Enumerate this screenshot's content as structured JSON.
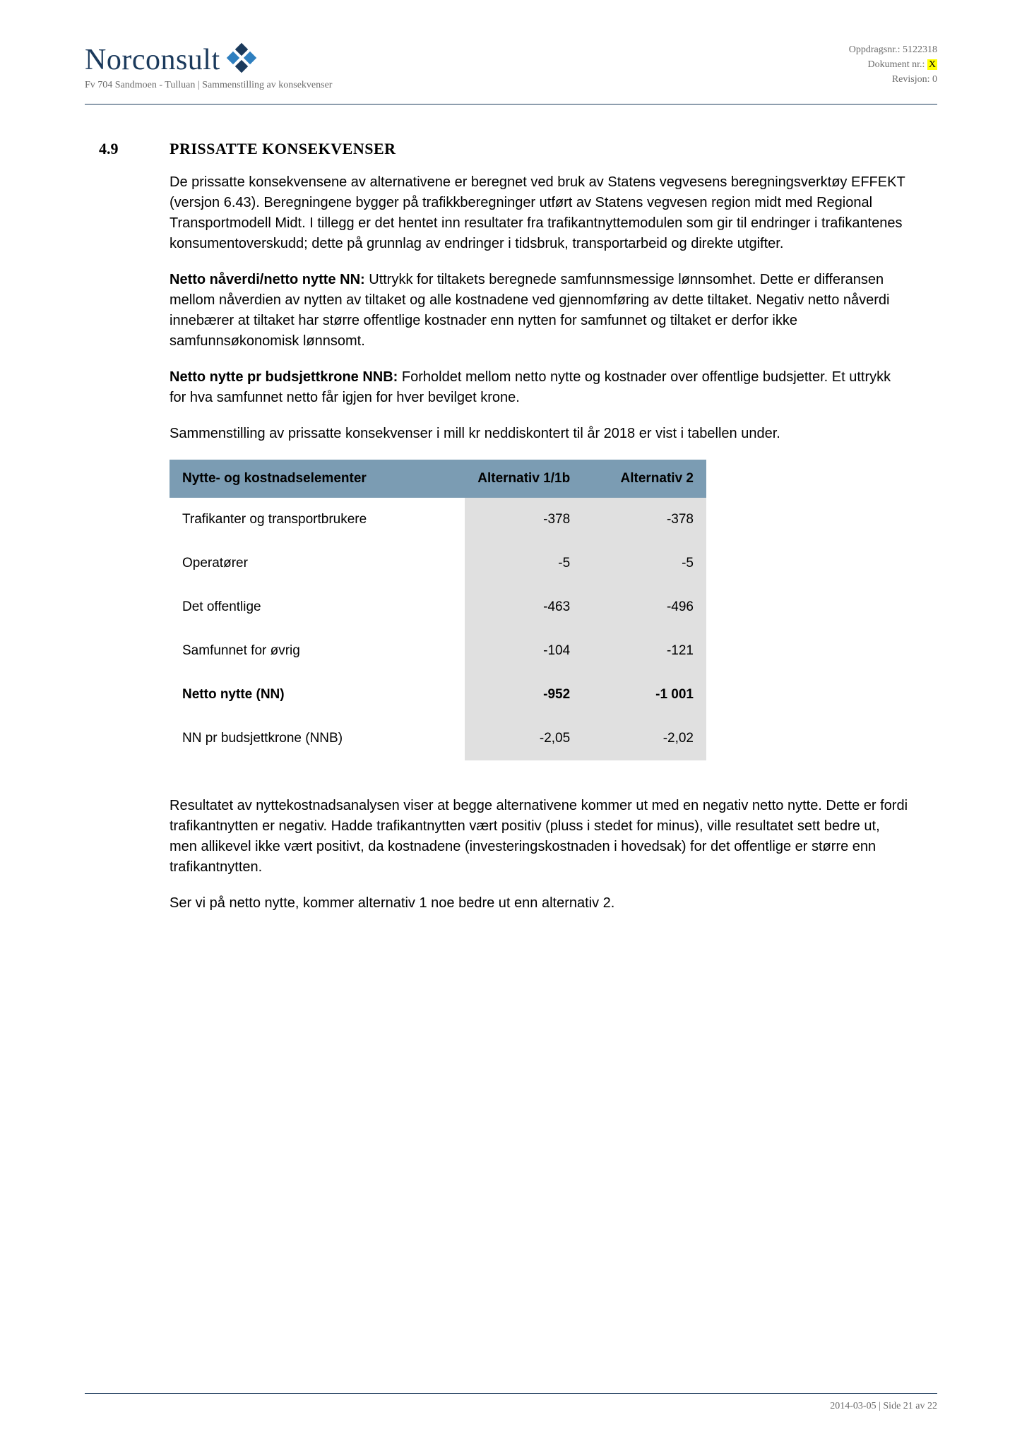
{
  "header": {
    "brand_name": "Norconsult",
    "brand_sub": "Fv 704 Sandmoen - Tulluan | Sammenstilling av konsekvenser",
    "meta_line1": "Oppdragsnr.: 5122318",
    "meta_line2_prefix": "Dokument nr.: ",
    "meta_line2_highlight": "X",
    "meta_line3": "Revisjon: 0",
    "logo_colors": {
      "blue": "#2f7fbf",
      "navy": "#1b3a5c"
    }
  },
  "section": {
    "number": "4.9",
    "title": "PRISSATTE KONSEKVENSER"
  },
  "paragraphs": {
    "p1": "De prissatte konsekvensene av alternativene er beregnet ved bruk av Statens vegvesens beregningsverktøy EFFEKT (versjon 6.43). Beregningene bygger på trafikkberegninger utført av Statens vegvesen region midt med Regional Transportmodell Midt. I tillegg er det hentet inn resultater fra trafikantnyttemodulen som gir til endringer i trafikantenes konsumentoverskudd; dette på grunnlag av endringer i tidsbruk, transportarbeid og direkte utgifter.",
    "p2_bold": "Netto nåverdi/netto nytte NN:",
    "p2_rest": " Uttrykk for tiltakets beregnede samfunnsmessige lønnsomhet. Dette er differansen mellom nåverdien av nytten av tiltaket og alle kostnadene ved gjennomføring av dette tiltaket. Negativ netto nåverdi innebærer at tiltaket har større offentlige kostnader enn nytten for samfunnet og tiltaket er derfor ikke samfunnsøkonomisk lønnsomt.",
    "p3_bold": "Netto nytte pr budsjettkrone NNB:",
    "p3_rest": " Forholdet mellom netto nytte og kostnader over offentlige budsjetter. Et uttrykk for hva samfunnet netto får igjen for hver bevilget krone.",
    "p4": "Sammenstilling av prissatte konsekvenser i mill kr neddiskontert til år 2018 er vist i tabellen under.",
    "p5": "Resultatet av nyttekostnadsanalysen viser at begge alternativene kommer ut med en negativ netto nytte. Dette er fordi trafikantnytten er negativ. Hadde trafikantnytten vært positiv (pluss i stedet for minus), ville resultatet sett bedre ut, men allikevel ikke vært positivt, da kostnadene (investeringskostnaden i hovedsak) for det offentlige er større enn trafikantnytten.",
    "p6": "Ser vi på netto nytte, kommer alternativ 1 noe bedre ut enn alternativ 2."
  },
  "table": {
    "header_bg": "#7b9cb3",
    "valcell_bg": "#e0e0e0",
    "columns": [
      "Nytte- og kostnadselementer",
      "Alternativ 1/1b",
      "Alternativ 2"
    ],
    "rows": [
      {
        "label": "Trafikanter og transportbrukere",
        "v1": "-378",
        "v2": "-378",
        "bold": false
      },
      {
        "label": "Operatører",
        "v1": "-5",
        "v2": "-5",
        "bold": false
      },
      {
        "label": "Det offentlige",
        "v1": "-463",
        "v2": "-496",
        "bold": false
      },
      {
        "label": "Samfunnet for øvrig",
        "v1": "-104",
        "v2": "-121",
        "bold": false
      },
      {
        "label": "Netto nytte (NN)",
        "v1": "-952",
        "v2": "-1 001",
        "bold": true
      },
      {
        "label": "NN pr budsjettkrone (NNB)",
        "v1": "-2,05",
        "v2": "-2,02",
        "bold": false
      }
    ]
  },
  "footer": {
    "text": "2014-03-05 | Side 21 av 22"
  }
}
